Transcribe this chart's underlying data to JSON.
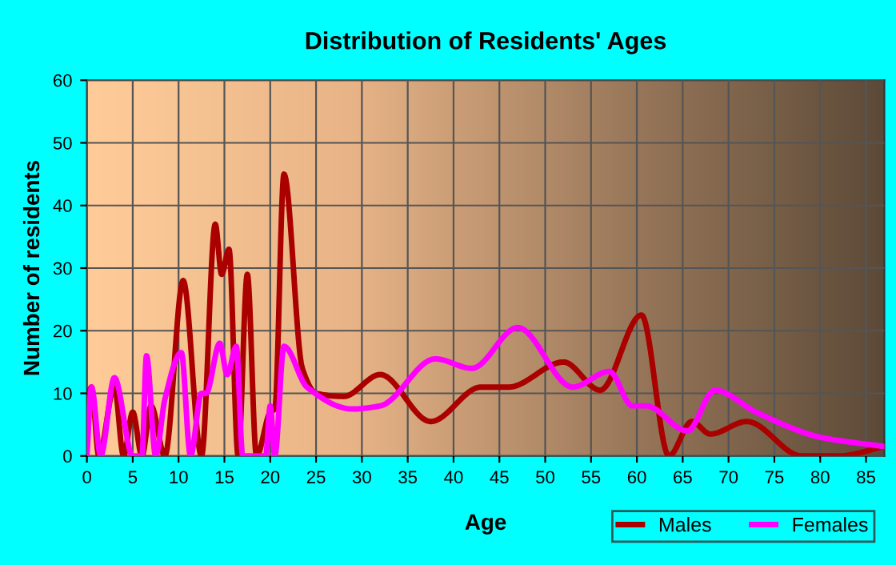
{
  "chart_data": {
    "type": "line",
    "title": "Distribution of Residents' Ages",
    "xlabel": "Age",
    "ylabel": "Number of residents",
    "xlim": [
      0,
      87
    ],
    "xticks": [
      0,
      5,
      10,
      15,
      20,
      25,
      30,
      35,
      40,
      45,
      50,
      55,
      60,
      65,
      70,
      75,
      80,
      85
    ],
    "ylim": [
      0,
      60
    ],
    "yticks": [
      0,
      10,
      20,
      30,
      40,
      50,
      60
    ],
    "grid": true,
    "legend": "bottom right",
    "line_style": "solid",
    "marker": "none",
    "series": [
      {
        "name": "Males",
        "color": "#aa0000",
        "x": [
          0,
          0.5,
          1.3,
          3,
          4,
          5,
          6,
          7,
          8.5,
          10.5,
          12.5,
          14,
          14.7,
          15.5,
          16.5,
          17.5,
          18.5,
          20,
          20.5,
          21.5,
          23.5,
          25,
          28,
          32,
          37.5,
          43,
          46,
          52,
          56,
          60.5,
          63.5,
          66,
          68,
          72,
          78,
          82,
          87
        ],
        "values": [
          9,
          11,
          0,
          11,
          0,
          7,
          0,
          8,
          0,
          28,
          0,
          37,
          29,
          33,
          0,
          29,
          0,
          7,
          7.5,
          45,
          14,
          10,
          9.5,
          13,
          5.5,
          11,
          11,
          15,
          10.5,
          22.5,
          0,
          5.5,
          3.5,
          5.5,
          0,
          0,
          1.5
        ]
      },
      {
        "name": "Females",
        "color": "#ff00ff",
        "x": [
          0,
          0.5,
          1.5,
          3,
          5,
          6,
          6.5,
          7.5,
          8.5,
          10.3,
          11.3,
          12.5,
          13,
          14.5,
          15.3,
          16.3,
          17,
          19.5,
          20,
          20.5,
          21.5,
          24,
          29,
          32,
          38,
          42,
          47,
          53,
          57,
          59.5,
          61,
          65.5,
          68.5,
          73,
          80,
          87
        ],
        "values": [
          0,
          11,
          0,
          12.5,
          0,
          0,
          16,
          0,
          9,
          16.5,
          0,
          10,
          10,
          18,
          13,
          17.5,
          0,
          0,
          8,
          0,
          17.5,
          11,
          7.5,
          8,
          15.5,
          14,
          20.5,
          11,
          13.5,
          8,
          8,
          4,
          10.5,
          7,
          3,
          1.5
        ]
      }
    ]
  }
}
